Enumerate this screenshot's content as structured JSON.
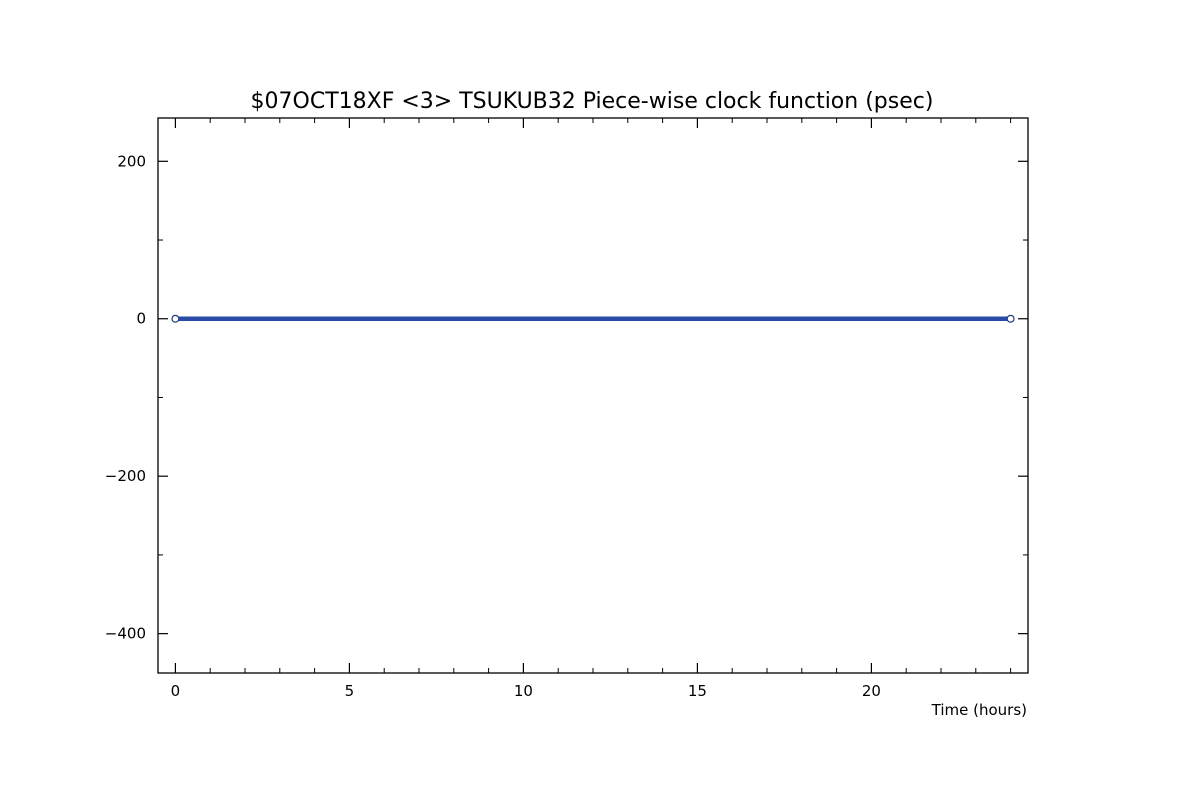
{
  "chart_data": {
    "type": "line",
    "title": "$07OCT18XF <3>  TSUKUB32  Piece-wise clock function (psec)",
    "xlabel": "Time (hours)",
    "ylabel": "",
    "xlim": [
      -0.5,
      24.5
    ],
    "ylim": [
      -450,
      255
    ],
    "x_ticks": [
      0,
      5,
      10,
      15,
      20
    ],
    "x_tick_labels": [
      "0",
      "5",
      "10",
      "15",
      "20"
    ],
    "x_minor_step": 1,
    "y_ticks": [
      200,
      0,
      -200,
      -400
    ],
    "y_tick_labels": [
      "200",
      "0",
      "−200",
      "−400"
    ],
    "y_minor_step": 100,
    "grid": false,
    "series": [
      {
        "x": [
          0,
          24
        ],
        "y": [
          0,
          0
        ],
        "color": "#2a4aa6",
        "marker_color": "#1f3b80",
        "markers": "open-circle"
      }
    ]
  }
}
